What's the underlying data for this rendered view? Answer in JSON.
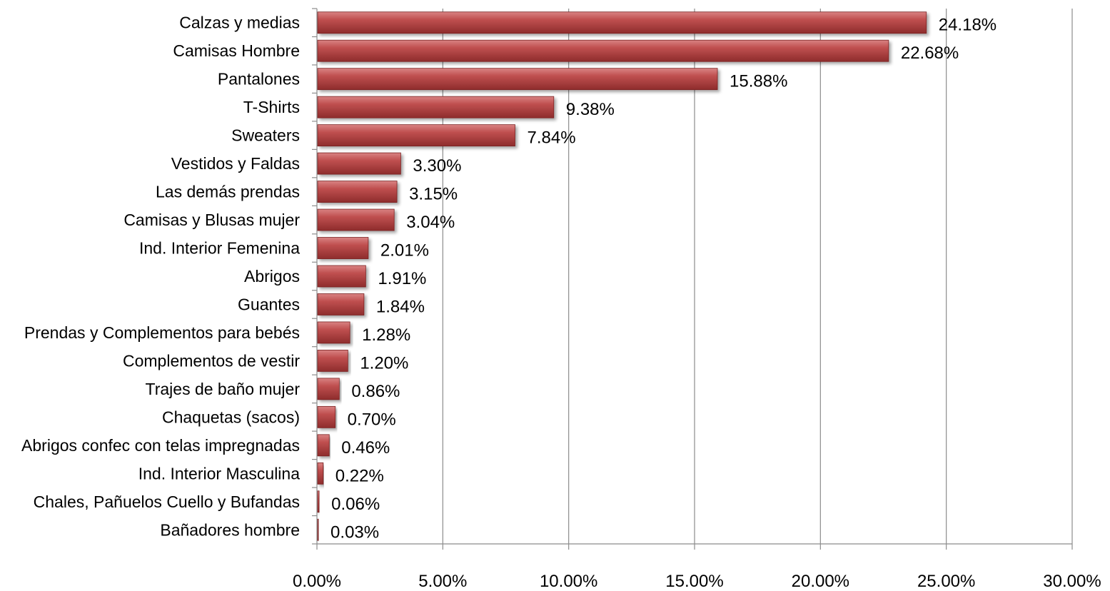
{
  "chart_data": {
    "type": "bar",
    "orientation": "horizontal",
    "title": "",
    "xlabel": "",
    "ylabel": "",
    "xlim": [
      0,
      30
    ],
    "x_ticks": [
      "0.00%",
      "5.00%",
      "10.00%",
      "15.00%",
      "20.00%",
      "25.00%",
      "30.00%"
    ],
    "grid": "vertical major gridlines",
    "legend": "none",
    "bar_color": "#b84444",
    "categories": [
      "Calzas y medias",
      "Camisas Hombre",
      "Pantalones",
      "T-Shirts",
      "Sweaters",
      "Vestidos y Faldas",
      "Las demás prendas",
      "Camisas y Blusas mujer",
      "Ind. Interior Femenina",
      "Abrigos",
      "Guantes",
      "Prendas y Complementos para bebés",
      "Complementos de vestir",
      "Trajes de baño mujer",
      "Chaquetas (sacos)",
      "Abrigos confec con telas impregnadas",
      "Ind. Interior Masculina",
      "Chales, Pañuelos Cuello y Bufandas",
      "Bañadores hombre"
    ],
    "values": [
      24.18,
      22.68,
      15.88,
      9.38,
      7.84,
      3.3,
      3.15,
      3.04,
      2.01,
      1.91,
      1.84,
      1.28,
      1.2,
      0.86,
      0.7,
      0.46,
      0.22,
      0.06,
      0.03
    ],
    "data_labels": [
      "24.18%",
      "22.68%",
      "15.88%",
      "9.38%",
      "7.84%",
      "3.30%",
      "3.15%",
      "3.04%",
      "2.01%",
      "1.91%",
      "1.84%",
      "1.28%",
      "1.20%",
      "0.86%",
      "0.70%",
      "0.46%",
      "0.22%",
      "0.06%",
      "0.03%"
    ]
  }
}
